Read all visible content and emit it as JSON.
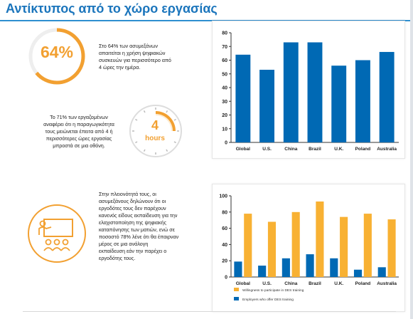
{
  "header": {
    "title": "Αντίκτυπος από το χώρο εργασίας"
  },
  "stat1": {
    "value": "64%",
    "text": [
      "Στο 64% των ασυμεξάνων",
      "απαιτείται η χρήση ψηφιακών",
      "συσκευών για περισσότερο από",
      "4 ώρες την ημέρα."
    ],
    "ring_fraction": 0.64
  },
  "stat2": {
    "value": "4",
    "unit": "hours",
    "text": [
      "Το 71% των εργαζομένων",
      "αναφέρει ότι η παραγωγικότητα",
      "τους μειώνεται έπειτα από 4 ή",
      "περισσότερες ώρες εργασίας",
      "μπροστά σε μια οθόνη."
    ]
  },
  "stat3": {
    "icon": "classroom-training-icon",
    "text": [
      "Στην πλειονότητά τους, οι",
      "ασυμεξάνους δηλώνουν ότι οι",
      "εργοδότες τους δεν παρέχουν",
      "κανενός είδους εκπαίδευση για την",
      "ελαχιστοποίηση της ψηφιακής",
      "καταπόνησης των ματιών, ενώ σε",
      "ποσοστό 78% λένε ότι θα έπαιρναν",
      "μέρος σε μια ανάλογη",
      "εκπαίδευση εάν την παρέχει ο",
      "εργοδότης τους."
    ]
  },
  "colors": {
    "blue": "#0069b4",
    "orange": "#f8b133",
    "accent": "#f2a031",
    "title": "#1b75bc"
  },
  "chart_data": [
    {
      "type": "bar",
      "categories": [
        "Global",
        "U.S.",
        "China",
        "Brazil",
        "U.K.",
        "Poland",
        "Australia"
      ],
      "series": [
        {
          "values": [
            64,
            53,
            73,
            73,
            56,
            60,
            66
          ]
        }
      ],
      "ylim": [
        0,
        80
      ],
      "yticks": [
        0,
        10,
        20,
        30,
        40,
        50,
        60,
        70,
        80
      ],
      "grid": false,
      "legend": "none"
    },
    {
      "type": "bar",
      "categories": [
        "Global",
        "U.S.",
        "China",
        "Brazil",
        "U.K.",
        "Poland",
        "Australia"
      ],
      "series": [
        {
          "name": "Employers who offer DES training",
          "values": [
            19,
            14,
            23,
            28,
            23,
            9,
            12
          ]
        },
        {
          "name": "Willingness to participate in DES training",
          "values": [
            78,
            68,
            80,
            93,
            74,
            78,
            71
          ]
        }
      ],
      "ylim": [
        0,
        100
      ],
      "yticks": [
        0,
        20,
        40,
        60,
        80,
        100
      ],
      "grid": false,
      "legend": "bottom"
    }
  ]
}
